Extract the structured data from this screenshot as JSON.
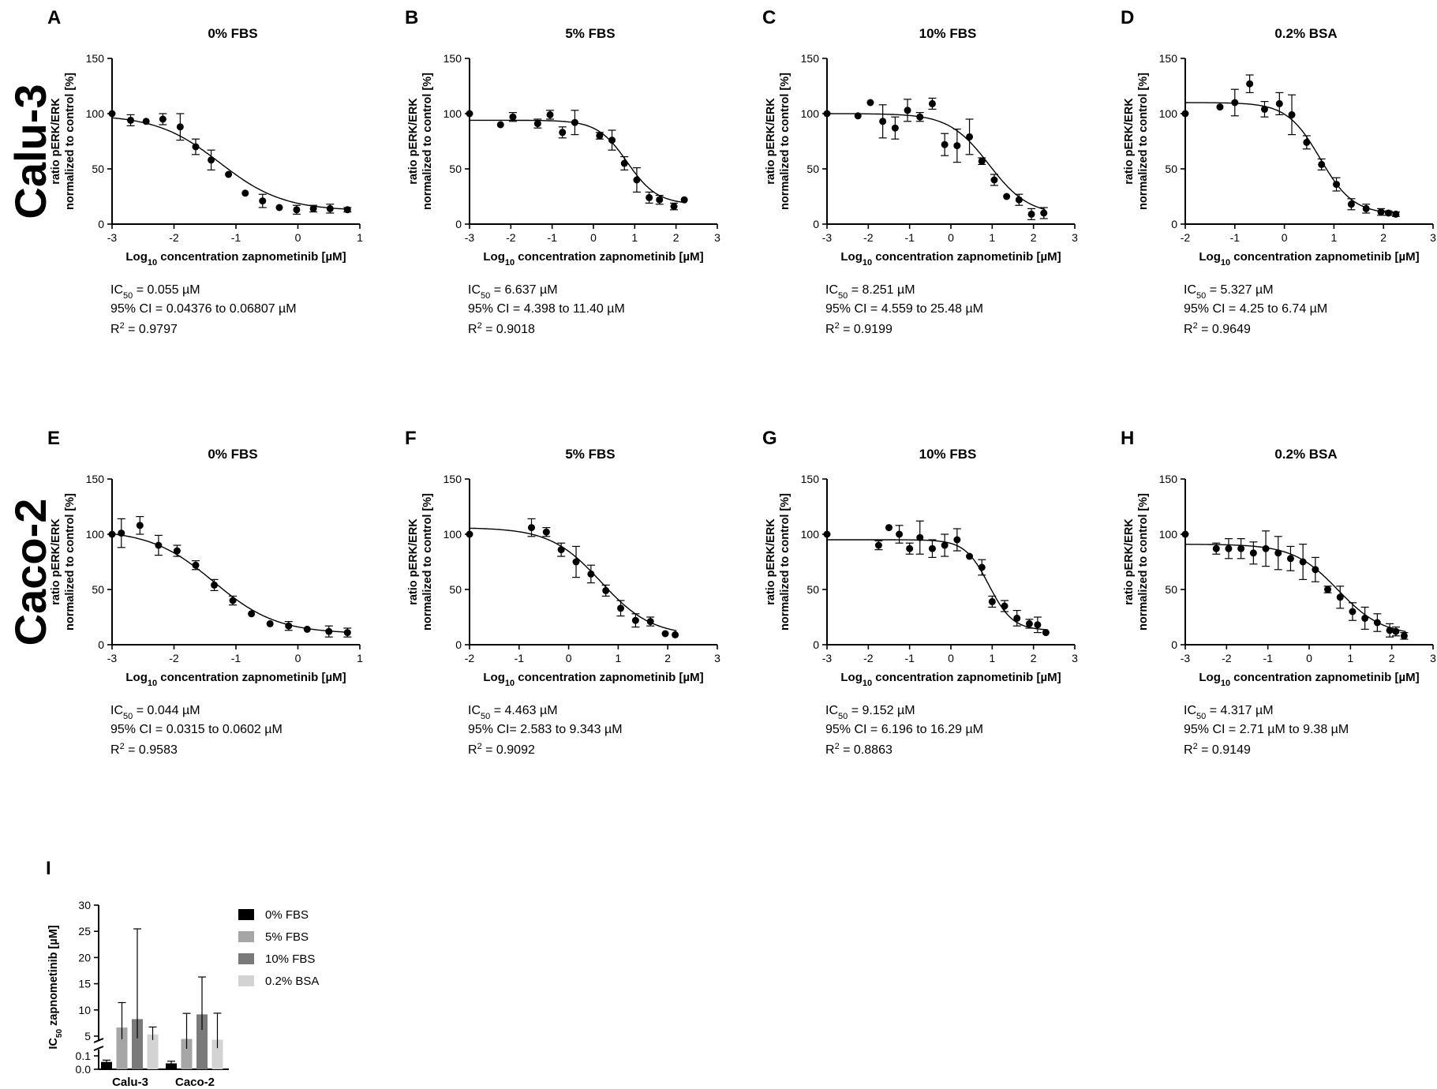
{
  "row_labels": [
    "Calu-3",
    "Caco-2"
  ],
  "chart_data": [
    {
      "type": "scatter",
      "letter": "A",
      "title": "0% FBS",
      "xlabel": "Log10 concentration zapnometinib [µM]",
      "ylabel": [
        "ratio pERK/ERK",
        "normalized to control [%]"
      ],
      "xlim": [
        -3,
        1
      ],
      "ylim": [
        0,
        150
      ],
      "xticks": [
        -3,
        -2,
        -1,
        0,
        1
      ],
      "yticks": [
        0,
        50,
        100,
        150
      ],
      "fit": {
        "top": 99,
        "bottom": 12,
        "logIC50": -1.26,
        "hill": 0.85
      },
      "points": [
        [
          -3,
          100
        ],
        [
          -2.7,
          94
        ],
        [
          -2.45,
          93
        ],
        [
          -2.18,
          95
        ],
        [
          -1.9,
          88
        ],
        [
          -1.65,
          70
        ],
        [
          -1.4,
          58
        ],
        [
          -1.12,
          45
        ],
        [
          -0.85,
          28
        ],
        [
          -0.57,
          21
        ],
        [
          -0.3,
          15
        ],
        [
          -0.02,
          13
        ],
        [
          0.25,
          14
        ],
        [
          0.52,
          14
        ],
        [
          0.8,
          13
        ]
      ],
      "errors": [
        0,
        5,
        0,
        5,
        12,
        7,
        9,
        0,
        0,
        6,
        0,
        4,
        3,
        4,
        2
      ],
      "stats": {
        "ic50": "= 0.055 µM",
        "ci": "95% CI = 0.04376 to 0.06807 µM",
        "r2": "= 0.9797"
      }
    },
    {
      "type": "scatter",
      "letter": "B",
      "title": "5% FBS",
      "xlabel": "Log10 concentration zapnometinib [µM]",
      "ylabel": [
        "ratio pERK/ERK",
        "normalized to control [%]"
      ],
      "xlim": [
        -3,
        3
      ],
      "ylim": [
        0,
        150
      ],
      "xticks": [
        -3,
        -2,
        -1,
        0,
        1,
        2,
        3
      ],
      "yticks": [
        0,
        50,
        100,
        150
      ],
      "fit": {
        "top": 94,
        "bottom": 18,
        "logIC50": 0.82,
        "hill": 1.2
      },
      "points": [
        [
          -3,
          100
        ],
        [
          -2.25,
          90
        ],
        [
          -1.95,
          97
        ],
        [
          -1.35,
          91
        ],
        [
          -1.05,
          99
        ],
        [
          -0.75,
          83
        ],
        [
          -0.45,
          92
        ],
        [
          0.15,
          80
        ],
        [
          0.45,
          76
        ],
        [
          0.75,
          55
        ],
        [
          1.05,
          40
        ],
        [
          1.35,
          24
        ],
        [
          1.6,
          22
        ],
        [
          1.95,
          16
        ],
        [
          2.2,
          22
        ]
      ],
      "errors": [
        0,
        0,
        4,
        4,
        4,
        5,
        11,
        3,
        9,
        6,
        11,
        5,
        4,
        3,
        0
      ],
      "stats": {
        "ic50": "= 6.637 µM",
        "ci": "95% CI = 4.398 to 11.40 µM",
        "r2": "= 0.9018"
      }
    },
    {
      "type": "scatter",
      "letter": "C",
      "title": "10% FBS",
      "xlabel": "Log10 concentration zapnometinib [µM]",
      "ylabel": [
        "ratio pERK/ERK",
        "normalized to control [%]"
      ],
      "xlim": [
        -3,
        3
      ],
      "ylim": [
        0,
        150
      ],
      "xticks": [
        -3,
        -2,
        -1,
        0,
        1,
        2,
        3
      ],
      "yticks": [
        0,
        50,
        100,
        150
      ],
      "fit": {
        "top": 100,
        "bottom": 8,
        "logIC50": 0.92,
        "hill": 0.9
      },
      "points": [
        [
          -3,
          100
        ],
        [
          -2.25,
          98
        ],
        [
          -1.95,
          110
        ],
        [
          -1.65,
          93
        ],
        [
          -1.35,
          87
        ],
        [
          -1.05,
          103
        ],
        [
          -0.75,
          97
        ],
        [
          -0.45,
          109
        ],
        [
          -0.15,
          72
        ],
        [
          0.15,
          71
        ],
        [
          0.45,
          79
        ],
        [
          0.75,
          57
        ],
        [
          1.05,
          40
        ],
        [
          1.35,
          25
        ],
        [
          1.65,
          22
        ],
        [
          1.95,
          9
        ],
        [
          2.25,
          10
        ]
      ],
      "errors": [
        0,
        0,
        0,
        15,
        10,
        10,
        4,
        5,
        10,
        15,
        16,
        3,
        5,
        0,
        5,
        5,
        5
      ],
      "stats": {
        "ic50": "= 8.251 µM",
        "ci": "95% CI = 4.559 to 25.48 µM",
        "r2": "= 0.9199"
      }
    },
    {
      "type": "scatter",
      "letter": "D",
      "title": "0.2% BSA",
      "xlabel": "Log10 concentration zapnometinib [µM]",
      "ylabel": [
        "ratio pERK/ERK",
        "normalized to control [%]"
      ],
      "xlim": [
        -2,
        3
      ],
      "ylim": [
        0,
        150
      ],
      "xticks": [
        -2,
        -1,
        0,
        1,
        2,
        3
      ],
      "yticks": [
        0,
        50,
        100,
        150
      ],
      "fit": {
        "top": 110,
        "bottom": 9,
        "logIC50": 0.72,
        "hill": 1.3
      },
      "points": [
        [
          -2,
          100
        ],
        [
          -1.3,
          106
        ],
        [
          -1,
          110
        ],
        [
          -0.7,
          127
        ],
        [
          -0.4,
          104
        ],
        [
          -0.1,
          109
        ],
        [
          0.15,
          99
        ],
        [
          0.45,
          74
        ],
        [
          0.75,
          54
        ],
        [
          1.05,
          36
        ],
        [
          1.35,
          18
        ],
        [
          1.65,
          14
        ],
        [
          1.95,
          11
        ],
        [
          2.1,
          10
        ],
        [
          2.25,
          9
        ]
      ],
      "errors": [
        0,
        0,
        12,
        8,
        7,
        10,
        18,
        6,
        5,
        6,
        5,
        4,
        3,
        2,
        2
      ],
      "stats": {
        "ic50": "= 5.327 µM",
        "ci": "95% CI = 4.25 to 6.74 µM",
        "r2": "= 0.9649"
      }
    },
    {
      "type": "scatter",
      "letter": "E",
      "title": "0% FBS",
      "xlabel": "Log10 concentration zapnometinib [µM]",
      "ylabel": [
        "ratio pERK/ERK",
        "normalized to control [%]"
      ],
      "xlim": [
        -3,
        1
      ],
      "ylim": [
        0,
        150
      ],
      "xticks": [
        -3,
        -2,
        -1,
        0,
        1
      ],
      "yticks": [
        0,
        50,
        100,
        150
      ],
      "fit": {
        "top": 104,
        "bottom": 10,
        "logIC50": -1.36,
        "hill": 0.85
      },
      "points": [
        [
          -3,
          100
        ],
        [
          -2.85,
          101
        ],
        [
          -2.55,
          108
        ],
        [
          -2.25,
          90
        ],
        [
          -1.95,
          85
        ],
        [
          -1.65,
          72
        ],
        [
          -1.35,
          54
        ],
        [
          -1.05,
          40
        ],
        [
          -0.75,
          28
        ],
        [
          -0.45,
          19
        ],
        [
          -0.15,
          17
        ],
        [
          0.15,
          14
        ],
        [
          0.5,
          12
        ],
        [
          0.8,
          11
        ]
      ],
      "errors": [
        0,
        13,
        8,
        9,
        5,
        4,
        5,
        4,
        0,
        0,
        4,
        0,
        5,
        4
      ],
      "stats": {
        "ic50": "= 0.044 µM",
        "ci": "95% CI = 0.0315 to 0.0602 µM",
        "r2": "= 0.9583"
      }
    },
    {
      "type": "scatter",
      "letter": "F",
      "title": "5% FBS",
      "xlabel": "Log10 concentration zapnometinib [µM]",
      "ylabel": [
        "ratio pERK/ERK",
        "normalized to control [%]"
      ],
      "xlim": [
        -2,
        3
      ],
      "ylim": [
        0,
        150
      ],
      "xticks": [
        -2,
        -1,
        0,
        1,
        2,
        3
      ],
      "yticks": [
        0,
        50,
        100,
        150
      ],
      "fit": {
        "top": 106,
        "bottom": 8,
        "logIC50": 0.65,
        "hill": 0.85
      },
      "points": [
        [
          -2,
          100
        ],
        [
          -0.75,
          106
        ],
        [
          -0.45,
          102
        ],
        [
          -0.15,
          86
        ],
        [
          0.15,
          75
        ],
        [
          0.45,
          64
        ],
        [
          0.75,
          49
        ],
        [
          1.05,
          33
        ],
        [
          1.35,
          22
        ],
        [
          1.65,
          21
        ],
        [
          1.95,
          10
        ],
        [
          2.15,
          9
        ]
      ],
      "errors": [
        0,
        8,
        4,
        6,
        14,
        8,
        5,
        7,
        6,
        4,
        0,
        0
      ],
      "stats": {
        "ic50": "= 4.463 µM",
        "ci": "95% CI= 2.583 to 9.343 µM",
        "r2": "= 0.9092"
      }
    },
    {
      "type": "scatter",
      "letter": "G",
      "title": "10% FBS",
      "xlabel": "Log10 concentration zapnometinib [µM]",
      "ylabel": [
        "ratio pERK/ERK",
        "normalized to control [%]"
      ],
      "xlim": [
        -3,
        3
      ],
      "ylim": [
        0,
        150
      ],
      "xticks": [
        -3,
        -2,
        -1,
        0,
        1,
        2,
        3
      ],
      "yticks": [
        0,
        50,
        100,
        150
      ],
      "fit": {
        "top": 95,
        "bottom": 13,
        "logIC50": 0.92,
        "hill": 1.5
      },
      "points": [
        [
          -3,
          100
        ],
        [
          -1.75,
          90
        ],
        [
          -1.5,
          106
        ],
        [
          -1.25,
          100
        ],
        [
          -1,
          87
        ],
        [
          -0.75,
          97
        ],
        [
          -0.45,
          87
        ],
        [
          -0.15,
          90
        ],
        [
          0.15,
          95
        ],
        [
          0.45,
          80
        ],
        [
          0.75,
          70
        ],
        [
          1,
          39
        ],
        [
          1.3,
          35
        ],
        [
          1.6,
          24
        ],
        [
          1.9,
          19
        ],
        [
          2.1,
          18
        ],
        [
          2.3,
          11
        ]
      ],
      "errors": [
        0,
        4,
        0,
        8,
        5,
        15,
        8,
        10,
        10,
        0,
        7,
        5,
        5,
        7,
        4,
        7,
        0
      ],
      "stats": {
        "ic50": " = 9.152 µM",
        "ci": "95% CI = 6.196 to 16.29 µM",
        "r2": "= 0.8863"
      }
    },
    {
      "type": "scatter",
      "letter": "H",
      "title": "0.2% BSA",
      "xlabel": "Log10 concentration zapnometinib [µM]",
      "ylabel": [
        "ratio pERK/ERK",
        "normalized to control [%]"
      ],
      "xlim": [
        -3,
        3
      ],
      "ylim": [
        0,
        150
      ],
      "xticks": [
        -3,
        -2,
        -1,
        0,
        1,
        2,
        3
      ],
      "yticks": [
        0,
        50,
        100,
        150
      ],
      "fit": {
        "top": 91,
        "bottom": 8,
        "logIC50": 0.7,
        "hill": 0.8
      },
      "points": [
        [
          -3,
          100
        ],
        [
          -2.25,
          87
        ],
        [
          -1.95,
          87
        ],
        [
          -1.65,
          87
        ],
        [
          -1.35,
          83
        ],
        [
          -1.05,
          87
        ],
        [
          -0.75,
          83
        ],
        [
          -0.45,
          78
        ],
        [
          -0.15,
          75
        ],
        [
          0.15,
          68
        ],
        [
          0.45,
          50
        ],
        [
          0.75,
          43
        ],
        [
          1.05,
          30
        ],
        [
          1.35,
          24
        ],
        [
          1.65,
          20
        ],
        [
          1.95,
          13
        ],
        [
          2.1,
          12
        ],
        [
          2.3,
          8
        ]
      ],
      "errors": [
        0,
        5,
        9,
        9,
        10,
        16,
        15,
        11,
        16,
        11,
        3,
        10,
        8,
        10,
        8,
        6,
        4,
        3
      ],
      "stats": {
        "ic50": "= 4.317 µM",
        "ci": "95% CI = 2.71 µM to 9.38 µM",
        "r2": "= 0.9149"
      }
    },
    {
      "type": "bar",
      "letter": "I",
      "ylabel": "IC50 zapnometinib [µM]",
      "categories": [
        "Calu-3",
        "Caco-2"
      ],
      "series": [
        {
          "name": "0% FBS",
          "values": [
            0.055,
            0.044
          ],
          "err_low": [
            0.04376,
            0.0315
          ],
          "err_high": [
            0.06807,
            0.0602
          ],
          "color": "#000000"
        },
        {
          "name": "5% FBS",
          "values": [
            6.637,
            4.463
          ],
          "err_low": [
            4.398,
            2.583
          ],
          "err_high": [
            11.4,
            9.343
          ],
          "color": "#a6a6a6"
        },
        {
          "name": "10% FBS",
          "values": [
            8.251,
            9.152
          ],
          "err_low": [
            4.559,
            6.196
          ],
          "err_high": [
            25.48,
            16.29
          ],
          "color": "#7a7a7a"
        },
        {
          "name": "0.2% BSA",
          "values": [
            5.327,
            4.317
          ],
          "err_low": [
            4.25,
            2.71
          ],
          "err_high": [
            6.74,
            9.38
          ],
          "color": "#d3d3d3"
        }
      ],
      "ylim": [
        0,
        30
      ],
      "yticks": [
        "0.0",
        "0.1",
        "5",
        "10",
        "15",
        "20",
        "25",
        "30"
      ],
      "axis_break": "between 0.1 and 5"
    }
  ]
}
